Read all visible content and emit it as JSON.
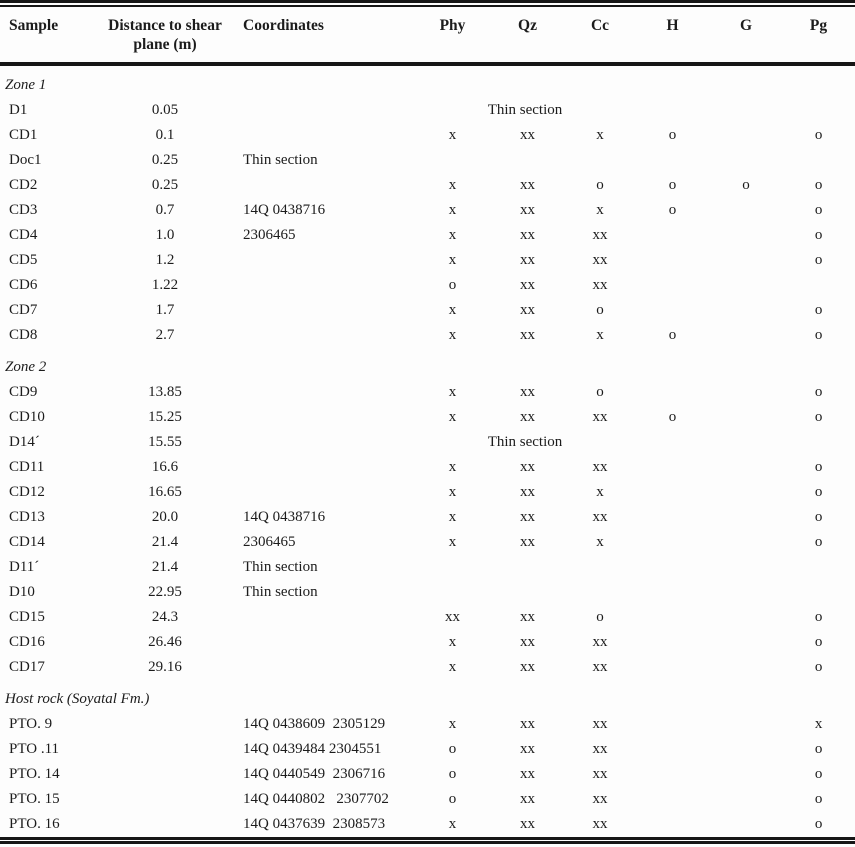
{
  "table": {
    "headers": {
      "sample": "Sample",
      "distance": "Distance to shear plane (m)",
      "coordinates": "Coordinates",
      "minerals": [
        "Phy",
        "Qz",
        "Cc",
        "H",
        "G",
        "Pg"
      ]
    },
    "colors": {
      "text": "#1c1c1c",
      "rule": "#161616",
      "background": "#fdfdfd"
    },
    "sections": [
      {
        "label": "Zone 1",
        "rows": [
          {
            "sample": "D1",
            "distance": "0.05",
            "coordinates": "",
            "span_note": "Thin section"
          },
          {
            "sample": "CD1",
            "distance": "0.1",
            "coordinates": "",
            "marks": [
              "x",
              "xx",
              "x",
              "o",
              "",
              "o"
            ]
          },
          {
            "sample": "Doc1",
            "distance": "0.25",
            "coordinates": "Thin section",
            "marks": [
              "",
              "",
              "",
              "",
              "",
              ""
            ]
          },
          {
            "sample": "CD2",
            "distance": "0.25",
            "coordinates": "",
            "marks": [
              "x",
              "xx",
              "o",
              "o",
              "o",
              "o"
            ]
          },
          {
            "sample": "CD3",
            "distance": "0.7",
            "coordinates": "14Q 0438716",
            "marks": [
              "x",
              "xx",
              "x",
              "o",
              "",
              "o"
            ]
          },
          {
            "sample": "CD4",
            "distance": "1.0",
            "coordinates": "2306465",
            "marks": [
              "x",
              "xx",
              "xx",
              "",
              "",
              "o"
            ]
          },
          {
            "sample": "CD5",
            "distance": "1.2",
            "coordinates": "",
            "marks": [
              "x",
              "xx",
              "xx",
              "",
              "",
              "o"
            ]
          },
          {
            "sample": "CD6",
            "distance": "1.22",
            "coordinates": "",
            "marks": [
              "o",
              "xx",
              "xx",
              "",
              "",
              ""
            ]
          },
          {
            "sample": "CD7",
            "distance": "1.7",
            "coordinates": "",
            "marks": [
              "x",
              "xx",
              "o",
              "",
              "",
              "o"
            ]
          },
          {
            "sample": "CD8",
            "distance": "2.7",
            "coordinates": "",
            "marks": [
              "x",
              "xx",
              "x",
              "o",
              "",
              "o"
            ]
          }
        ]
      },
      {
        "label": "Zone 2",
        "rows": [
          {
            "sample": "CD9",
            "distance": "13.85",
            "coordinates": "",
            "marks": [
              "x",
              "xx",
              "o",
              "",
              "",
              "o"
            ]
          },
          {
            "sample": "CD10",
            "distance": "15.25",
            "coordinates": "",
            "marks": [
              "x",
              "xx",
              "xx",
              "o",
              "",
              "o"
            ]
          },
          {
            "sample": "D14´",
            "distance": "15.55",
            "coordinates": "",
            "span_note": "Thin section"
          },
          {
            "sample": "CD11",
            "distance": "16.6",
            "coordinates": "",
            "marks": [
              "x",
              "xx",
              "xx",
              "",
              "",
              "o"
            ]
          },
          {
            "sample": "CD12",
            "distance": "16.65",
            "coordinates": "",
            "marks": [
              "x",
              "xx",
              "x",
              "",
              "",
              "o"
            ]
          },
          {
            "sample": "CD13",
            "distance": "20.0",
            "coordinates": "14Q 0438716",
            "marks": [
              "x",
              "xx",
              "xx",
              "",
              "",
              "o"
            ]
          },
          {
            "sample": "CD14",
            "distance": "21.4",
            "coordinates": "2306465",
            "marks": [
              "x",
              "xx",
              "x",
              "",
              "",
              "o"
            ]
          },
          {
            "sample": "D11´",
            "distance": "21.4",
            "coordinates": "Thin section",
            "marks": [
              "",
              "",
              "",
              "",
              "",
              ""
            ]
          },
          {
            "sample": "D10",
            "distance": "22.95",
            "coordinates": "Thin section",
            "marks": [
              "",
              "",
              "",
              "",
              "",
              ""
            ]
          },
          {
            "sample": "CD15",
            "distance": "24.3",
            "coordinates": "",
            "marks": [
              "xx",
              "xx",
              "o",
              "",
              "",
              "o"
            ]
          },
          {
            "sample": "CD16",
            "distance": "26.46",
            "coordinates": "",
            "marks": [
              "x",
              "xx",
              "xx",
              "",
              "",
              "o"
            ]
          },
          {
            "sample": "CD17",
            "distance": "29.16",
            "coordinates": "",
            "marks": [
              "x",
              "xx",
              "xx",
              "",
              "",
              "o"
            ]
          }
        ]
      },
      {
        "label": "Host rock (Soyatal Fm.)",
        "rows": [
          {
            "sample": "PTO. 9",
            "distance": "",
            "coordinates": "14Q 0438609  2305129",
            "marks": [
              "x",
              "xx",
              "xx",
              "",
              "",
              "x"
            ]
          },
          {
            "sample": "PTO .11",
            "distance": "",
            "coordinates": "14Q 0439484 2304551",
            "marks": [
              "o",
              "xx",
              "xx",
              "",
              "",
              "o"
            ]
          },
          {
            "sample": "PTO. 14",
            "distance": "",
            "coordinates": "14Q 0440549  2306716",
            "marks": [
              "o",
              "xx",
              "xx",
              "",
              "",
              "o"
            ]
          },
          {
            "sample": "PTO. 15",
            "distance": "",
            "coordinates": "14Q 0440802   2307702",
            "marks": [
              "o",
              "xx",
              "xx",
              "",
              "",
              "o"
            ]
          },
          {
            "sample": "PTO. 16",
            "distance": "",
            "coordinates": "14Q 0437639  2308573",
            "marks": [
              "x",
              "xx",
              "xx",
              "",
              "",
              "o"
            ]
          }
        ]
      }
    ]
  }
}
